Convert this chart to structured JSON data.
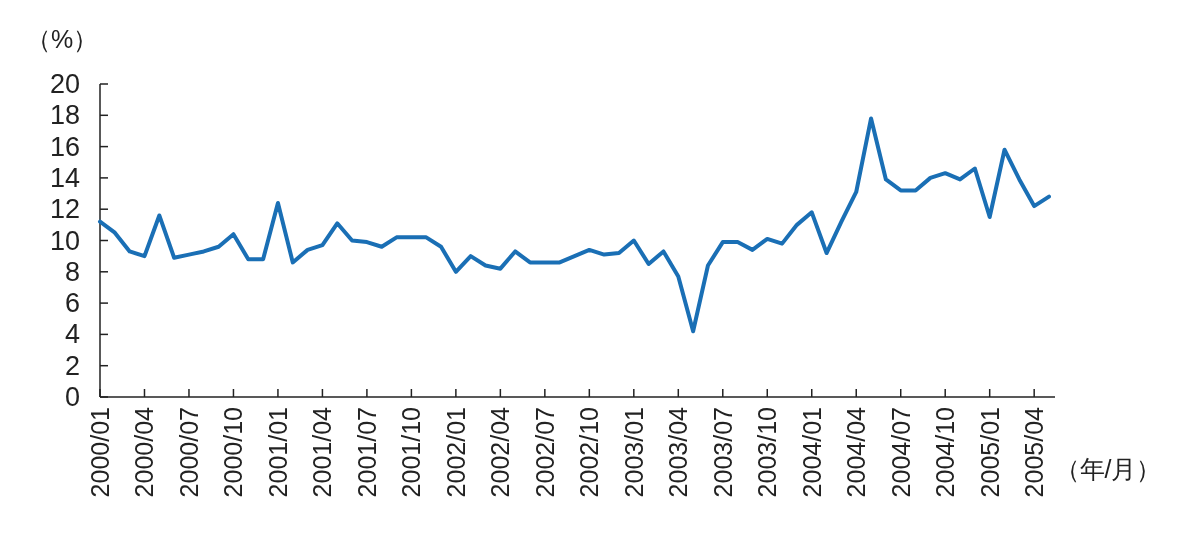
{
  "chart_data": {
    "type": "line",
    "xlabel": "（年/月）",
    "ylabel": "（%）",
    "categories": [
      "2000/01",
      null,
      null,
      "2000/04",
      null,
      null,
      "2000/07",
      null,
      null,
      "2000/10",
      null,
      null,
      "2001/01",
      null,
      null,
      "2001/04",
      null,
      null,
      "2001/07",
      null,
      null,
      "2001/10",
      null,
      null,
      "2002/01",
      null,
      null,
      "2002/04",
      null,
      null,
      "2002/07",
      null,
      null,
      "2002/10",
      null,
      null,
      "2003/01",
      null,
      null,
      "2003/04",
      null,
      null,
      "2003/07",
      null,
      null,
      "2003/10",
      null,
      null,
      "2004/01",
      null,
      null,
      "2004/04",
      null,
      null,
      "2004/07",
      null,
      null,
      "2004/10",
      null,
      null,
      "2005/01",
      null,
      null,
      "2005/04",
      null
    ],
    "series": [
      {
        "color": "#1a6fb5",
        "values": [
          11.2,
          10.5,
          9.3,
          9.0,
          11.6,
          8.9,
          9.1,
          9.3,
          9.6,
          10.4,
          8.8,
          8.8,
          12.4,
          8.6,
          9.4,
          9.7,
          11.1,
          10.0,
          9.9,
          9.6,
          10.2,
          10.2,
          10.2,
          9.6,
          8.0,
          9.0,
          8.4,
          8.2,
          9.3,
          8.6,
          8.6,
          8.6,
          9.0,
          9.4,
          9.1,
          9.2,
          10.0,
          8.5,
          9.3,
          7.7,
          4.2,
          8.4,
          9.9,
          9.9,
          9.4,
          10.1,
          9.8,
          11.0,
          11.8,
          9.2,
          11.2,
          13.1,
          17.8,
          13.9,
          13.2,
          13.2,
          14.0,
          14.3,
          13.9,
          14.6,
          11.5,
          15.8,
          13.9,
          12.2,
          12.8
        ]
      }
    ],
    "ylim": [
      0,
      20
    ],
    "yticks": [
      0,
      2,
      4,
      6,
      8,
      10,
      12,
      14,
      16,
      18,
      20
    ],
    "grid": false,
    "marker": "none",
    "line_style": "solid"
  }
}
